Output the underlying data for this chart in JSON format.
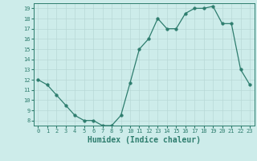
{
  "x": [
    0,
    1,
    2,
    3,
    4,
    5,
    6,
    7,
    8,
    9,
    10,
    11,
    12,
    13,
    14,
    15,
    16,
    17,
    18,
    19,
    20,
    21,
    22,
    23
  ],
  "y": [
    12,
    11.5,
    10.5,
    9.5,
    8.5,
    8,
    8,
    7.5,
    7.5,
    8.5,
    11.7,
    15,
    16,
    18,
    17,
    17,
    18.5,
    19,
    19,
    19.2,
    17.5,
    17.5,
    13,
    11.5
  ],
  "line_color": "#2e7d6e",
  "marker": "o",
  "marker_size": 2.5,
  "background_color": "#cdecea",
  "grid_color": "#b8d8d6",
  "tick_color": "#2e7d6e",
  "xlabel": "Humidex (Indice chaleur)",
  "xlabel_fontsize": 7,
  "ylim": [
    7.5,
    19.5
  ],
  "yticks": [
    8,
    9,
    10,
    11,
    12,
    13,
    14,
    15,
    16,
    17,
    18,
    19
  ],
  "xticks": [
    0,
    1,
    2,
    3,
    4,
    5,
    6,
    7,
    8,
    9,
    10,
    11,
    12,
    13,
    14,
    15,
    16,
    17,
    18,
    19,
    20,
    21,
    22,
    23
  ],
  "xlim": [
    -0.5,
    23.5
  ]
}
